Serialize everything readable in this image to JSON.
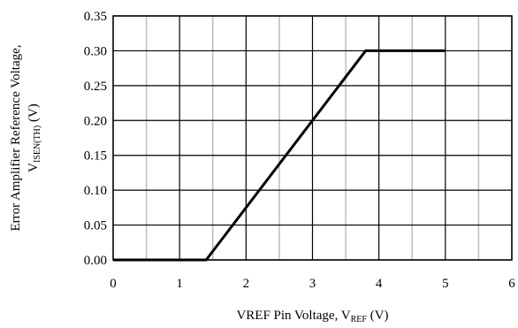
{
  "chart_data": {
    "type": "line",
    "xlim": [
      0,
      6
    ],
    "ylim": [
      0,
      0.35
    ],
    "x_ticks": [
      0,
      1,
      2,
      3,
      4,
      5,
      6
    ],
    "x_tick_labels": [
      "0",
      "1",
      "2",
      "3",
      "4",
      "5",
      "6"
    ],
    "y_ticks": [
      0,
      0.05,
      0.1,
      0.15,
      0.2,
      0.25,
      0.3,
      0.35
    ],
    "y_tick_labels": [
      "0.00",
      "0.05",
      "0.10",
      "0.15",
      "0.20",
      "0.25",
      "0.30",
      "0.35"
    ],
    "grid": true,
    "minor_grid_x": true,
    "xlabel": {
      "main": "VREF Pin Voltage,  V",
      "sub": "REF",
      "suffix": " (V)"
    },
    "ylabel": {
      "line1": "Error Amplifier Reference Voltage,",
      "main": "V",
      "sub": "ISEN(TH)",
      "suffix": " (V)"
    },
    "series": [
      {
        "color": "#000000",
        "x": [
          0,
          1.4,
          3.8,
          5.0
        ],
        "y": [
          0,
          0,
          0.3,
          0.3
        ]
      }
    ]
  }
}
